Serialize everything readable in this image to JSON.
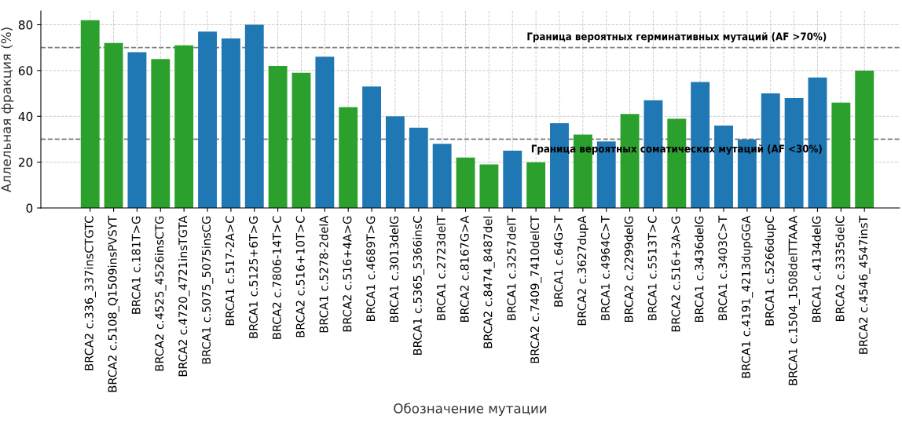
{
  "chart_data": {
    "type": "bar",
    "xlabel": "Обозначение мутации",
    "ylabel": "Аллельная фракция (%)",
    "categories": [
      "BRCA2 c.336_337insCTGTC",
      "BRCA2 c.5108_Q1509insPVSYT",
      "BRCA1 c.181T>G",
      "BRCA2 c.4525_4526insCTG",
      "BRCA2 c.4720_4721insTGTA",
      "BRCA1 c.5075_5075insCG",
      "BRCA1 c.517-2A>C",
      "BRCA1 c.5125+6T>G",
      "BRCA2 c.7806-14T>C",
      "BRCA2 c.516+10T>C",
      "BRCA1 c.5278-2delA",
      "BRCA2 c.516+4A>G",
      "BRCA1 c.4689T>G",
      "BRCA1 c.3013delG",
      "BRCA1 c.5365_5366insC",
      "BRCA1 c.2723delT",
      "BRCA2 c.8167G>A",
      "BRCA2 c.8474_8487del",
      "BRCA1 c.3257delT",
      "BRCA2 c.7409_7410delCT",
      "BRCA1 c.64G>T",
      "BRCA2 c.3627dupA",
      "BRCA1 c.4964C>T",
      "BRCA2 c.2299delG",
      "BRCA1 c.5513T>C",
      "BRCA2 c.516+3A>G",
      "BRCA1 c.3436delG",
      "BRCA1 c.3403C>T",
      "BRCA1 c.4191_4213dupGGA",
      "BRCA1 c.5266dupC",
      "BRCA1 c.1504_1508delTTAAA",
      "BRCA1 c.4134delG",
      "BRCA2 c.3335delC",
      "BRCA2 c.4546_4547insT"
    ],
    "values": [
      82,
      72,
      68,
      65,
      71,
      77,
      74,
      80,
      62,
      59,
      66,
      44,
      53,
      40,
      35,
      28,
      22,
      19,
      25,
      20,
      37,
      32,
      29,
      41,
      47,
      39,
      55,
      36,
      30,
      50,
      48,
      57,
      46,
      60
    ],
    "colors": [
      "#2ca02c",
      "#2ca02c",
      "#1f77b4",
      "#2ca02c",
      "#2ca02c",
      "#1f77b4",
      "#1f77b4",
      "#1f77b4",
      "#2ca02c",
      "#2ca02c",
      "#1f77b4",
      "#2ca02c",
      "#1f77b4",
      "#1f77b4",
      "#1f77b4",
      "#1f77b4",
      "#2ca02c",
      "#2ca02c",
      "#1f77b4",
      "#2ca02c",
      "#1f77b4",
      "#2ca02c",
      "#1f77b4",
      "#2ca02c",
      "#1f77b4",
      "#2ca02c",
      "#1f77b4",
      "#1f77b4",
      "#1f77b4",
      "#1f77b4",
      "#1f77b4",
      "#1f77b4",
      "#2ca02c",
      "#2ca02c"
    ],
    "ylim": [
      0,
      86
    ],
    "yticks": [
      0,
      20,
      40,
      60,
      80
    ],
    "grid": true,
    "ref_lines": [
      {
        "axis": "y",
        "value": 70,
        "label": "Граница вероятных герминативных мутаций (AF >70%)",
        "color": "#808080",
        "line_style": "dashed"
      },
      {
        "axis": "y",
        "value": 30,
        "label": "Граница вероятных соматических мутаций (AF <30%)",
        "color": "#808080",
        "line_style": "dashed"
      }
    ]
  }
}
